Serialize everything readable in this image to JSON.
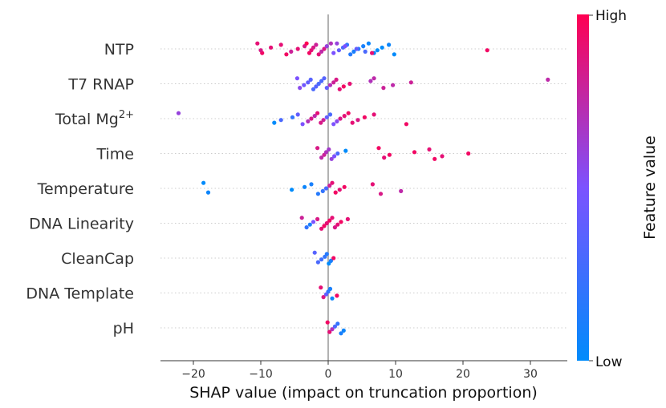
{
  "chart_data": {
    "type": "scatter",
    "subtype": "shap-beeswarm",
    "xlabel": "SHAP value (impact on truncation proportion)",
    "xlim": [
      -25,
      35
    ],
    "xticks": [
      -20,
      -10,
      0,
      10,
      20,
      30
    ],
    "xtick_labels": [
      "−20",
      "−10",
      "0",
      "10",
      "20",
      "30"
    ],
    "colorbar": {
      "title": "Feature value",
      "high_label": "High",
      "low_label": "Low",
      "low_color": "#008bfb",
      "high_color": "#ff0052"
    },
    "features": [
      {
        "name": "NTP",
        "sup": "",
        "points": [
          [
            -10.5,
            0.9
          ],
          [
            -9.8,
            0.95
          ],
          [
            -10.0,
            0.85
          ],
          [
            -8.5,
            0.9
          ],
          [
            -7.0,
            0.9
          ],
          [
            -6.2,
            0.95
          ],
          [
            -5.5,
            0.8
          ],
          [
            -4.5,
            0.9
          ],
          [
            -3.5,
            0.85
          ],
          [
            -3.2,
            1
          ],
          [
            -2.8,
            0.95
          ],
          [
            -2.5,
            0.9
          ],
          [
            -2.2,
            0.85
          ],
          [
            -1.8,
            0.8
          ],
          [
            -1.4,
            0.9
          ],
          [
            -1.0,
            0.75
          ],
          [
            -0.6,
            0.85
          ],
          [
            -0.2,
            0.6
          ],
          [
            0.4,
            0.7
          ],
          [
            0.8,
            0.5
          ],
          [
            1.6,
            0.4
          ],
          [
            2.2,
            0.3
          ],
          [
            2.8,
            0.2
          ],
          [
            3.3,
            0.15
          ],
          [
            3.8,
            0.1
          ],
          [
            4.5,
            0.15
          ],
          [
            5.2,
            0.1
          ],
          [
            6.0,
            0.05
          ],
          [
            6.8,
            0.05
          ],
          [
            7.3,
            0.0
          ],
          [
            8.0,
            0.0
          ],
          [
            9.0,
            0.05
          ],
          [
            9.8,
            0.0
          ],
          [
            5.5,
            0.3
          ],
          [
            4.2,
            0.4
          ],
          [
            2.5,
            0.5
          ],
          [
            1.3,
            0.6
          ],
          [
            6.5,
            0.9
          ],
          [
            23.6,
            0.95
          ]
        ]
      },
      {
        "name": "T7 RNAP",
        "sup": "",
        "points": [
          [
            -4.6,
            0.5
          ],
          [
            -4.2,
            0.55
          ],
          [
            -3.6,
            0.45
          ],
          [
            -3.0,
            0.4
          ],
          [
            -2.6,
            0.35
          ],
          [
            -2.2,
            0.3
          ],
          [
            -1.8,
            0.35
          ],
          [
            -1.4,
            0.3
          ],
          [
            -1.0,
            0.3
          ],
          [
            -0.6,
            0.35
          ],
          [
            -0.2,
            0.4
          ],
          [
            0.3,
            0.7
          ],
          [
            0.8,
            0.8
          ],
          [
            1.2,
            0.85
          ],
          [
            1.7,
            0.9
          ],
          [
            2.3,
            0.95
          ],
          [
            3.2,
            0.9
          ],
          [
            6.3,
            0.7
          ],
          [
            6.8,
            0.75
          ],
          [
            8.2,
            0.8
          ],
          [
            9.6,
            0.75
          ],
          [
            12.3,
            0.8
          ],
          [
            32.6,
            0.75
          ]
        ]
      },
      {
        "name": "Total Mg",
        "sup": "2+",
        "points": [
          [
            -22.2,
            0.6
          ],
          [
            -8.0,
            0.0
          ],
          [
            -7.0,
            0.3
          ],
          [
            -5.3,
            0.2
          ],
          [
            -4.5,
            0.4
          ],
          [
            -3.8,
            0.5
          ],
          [
            -3.0,
            0.7
          ],
          [
            -2.5,
            0.85
          ],
          [
            -2.0,
            0.75
          ],
          [
            -1.6,
            0.9
          ],
          [
            -1.1,
            0.85
          ],
          [
            -0.7,
            0.8
          ],
          [
            -0.2,
            0.4
          ],
          [
            0.3,
            0.3
          ],
          [
            0.8,
            0.5
          ],
          [
            1.3,
            0.55
          ],
          [
            1.8,
            0.85
          ],
          [
            2.4,
            0.9
          ],
          [
            3.0,
            0.95
          ],
          [
            3.6,
            0.9
          ],
          [
            4.4,
            0.85
          ],
          [
            5.4,
            0.95
          ],
          [
            6.8,
            0.9
          ],
          [
            11.6,
            0.95
          ]
        ]
      },
      {
        "name": "Time",
        "sup": "",
        "points": [
          [
            -1.6,
            0.85
          ],
          [
            -1.0,
            0.75
          ],
          [
            -0.6,
            0.8
          ],
          [
            -0.3,
            0.7
          ],
          [
            0.1,
            0.65
          ],
          [
            0.5,
            0.6
          ],
          [
            0.9,
            0.5
          ],
          [
            1.4,
            0.3
          ],
          [
            2.6,
            0.0
          ],
          [
            7.5,
            0.95
          ],
          [
            8.3,
            0.9
          ],
          [
            9.1,
            0.95
          ],
          [
            12.8,
            0.95
          ],
          [
            15.0,
            0.9
          ],
          [
            15.8,
            0.95
          ],
          [
            16.9,
            0.9
          ],
          [
            20.8,
            0.95
          ]
        ]
      },
      {
        "name": "Temperature",
        "sup": "",
        "points": [
          [
            -18.5,
            0.0
          ],
          [
            -17.8,
            0.05
          ],
          [
            -5.4,
            0.0
          ],
          [
            -3.5,
            0.05
          ],
          [
            -2.5,
            0.1
          ],
          [
            -1.5,
            0.15
          ],
          [
            -0.8,
            0.2
          ],
          [
            -0.3,
            0.3
          ],
          [
            0.2,
            0.8
          ],
          [
            0.6,
            0.9
          ],
          [
            1.1,
            0.95
          ],
          [
            1.7,
            0.9
          ],
          [
            2.4,
            0.95
          ],
          [
            6.6,
            0.9
          ],
          [
            7.8,
            0.85
          ],
          [
            10.8,
            0.75
          ]
        ]
      },
      {
        "name": "DNA Linearity",
        "sup": "",
        "points": [
          [
            -3.9,
            0.8
          ],
          [
            -3.2,
            0.2
          ],
          [
            -2.7,
            0.1
          ],
          [
            -2.2,
            0.5
          ],
          [
            -1.6,
            0.85
          ],
          [
            -1.0,
            0.9
          ],
          [
            -0.6,
            0.95
          ],
          [
            -0.2,
            0.9
          ],
          [
            0.2,
            0.95
          ],
          [
            0.6,
            0.9
          ],
          [
            1.0,
            0.85
          ],
          [
            1.4,
            0.9
          ],
          [
            1.9,
            0.95
          ],
          [
            2.9,
            0.9
          ]
        ]
      },
      {
        "name": "CleanCap",
        "sup": "",
        "points": [
          [
            -2.0,
            0.35
          ],
          [
            -1.5,
            0.3
          ],
          [
            -1.0,
            0.25
          ],
          [
            -0.5,
            0.2
          ],
          [
            -0.2,
            0.15
          ],
          [
            0.1,
            0.0
          ],
          [
            0.4,
            0.1
          ],
          [
            0.8,
            0.95
          ]
        ]
      },
      {
        "name": "DNA Template",
        "sup": "",
        "points": [
          [
            -1.1,
            0.9
          ],
          [
            -0.7,
            0.85
          ],
          [
            -0.3,
            0.4
          ],
          [
            0.0,
            0.2
          ],
          [
            0.3,
            0.1
          ],
          [
            0.6,
            0.05
          ],
          [
            1.3,
            0.95
          ]
        ]
      },
      {
        "name": "pH",
        "sup": "",
        "points": [
          [
            -0.1,
            0.95
          ],
          [
            0.2,
            0.9
          ],
          [
            0.6,
            0.7
          ],
          [
            1.0,
            0.3
          ],
          [
            1.4,
            0.2
          ],
          [
            1.9,
            0.1
          ],
          [
            2.3,
            0.05
          ]
        ]
      }
    ]
  }
}
